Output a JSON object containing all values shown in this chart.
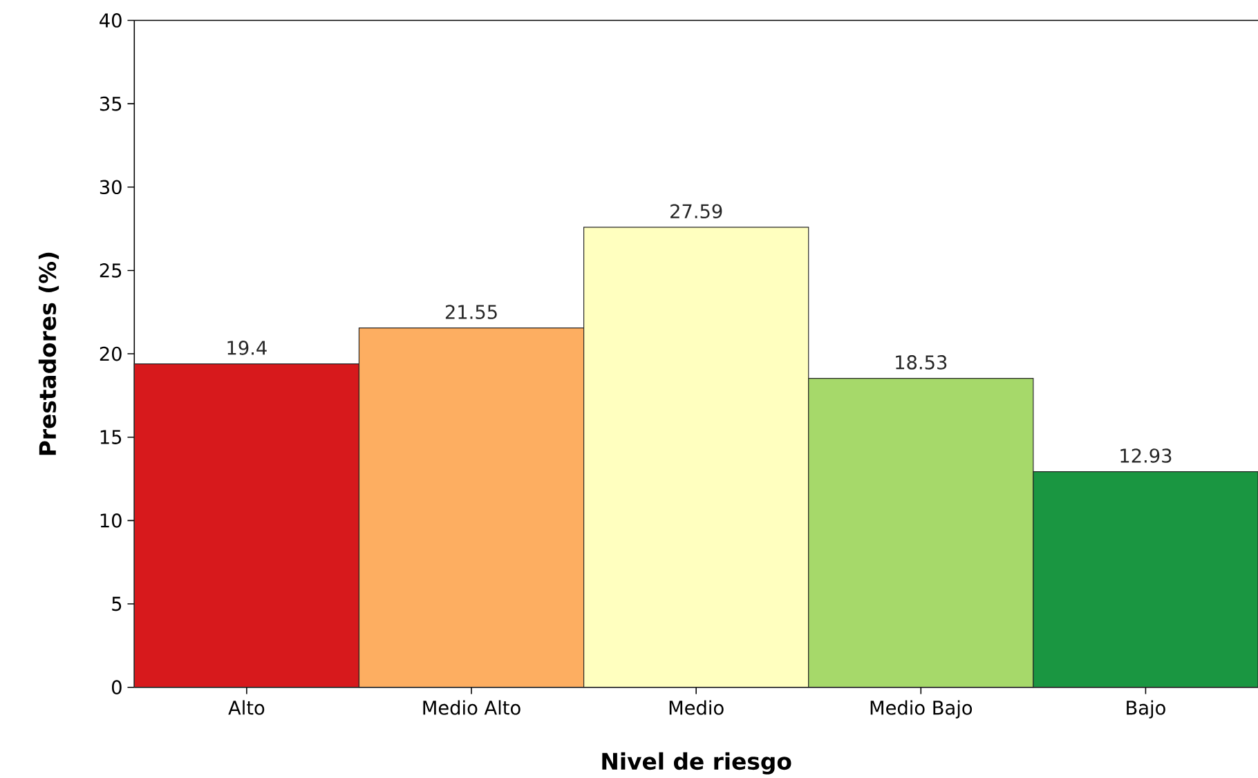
{
  "chart_data": {
    "type": "bar",
    "xlabel": "Nivel de riesgo",
    "ylabel": "Prestadores (%)",
    "categories": [
      "Alto",
      "Medio Alto",
      "Medio",
      "Medio Bajo",
      "Bajo"
    ],
    "values": [
      19.4,
      21.55,
      27.59,
      18.53,
      12.93
    ],
    "value_labels": [
      "19.4",
      "21.55",
      "27.59",
      "18.53",
      "12.93"
    ],
    "colors": [
      "#d7191c",
      "#fdae61",
      "#ffffbf",
      "#a6d96a",
      "#1a9641"
    ],
    "ylim": [
      0,
      40
    ],
    "yticks": [
      0,
      5,
      10,
      15,
      20,
      25,
      30,
      35,
      40
    ]
  }
}
